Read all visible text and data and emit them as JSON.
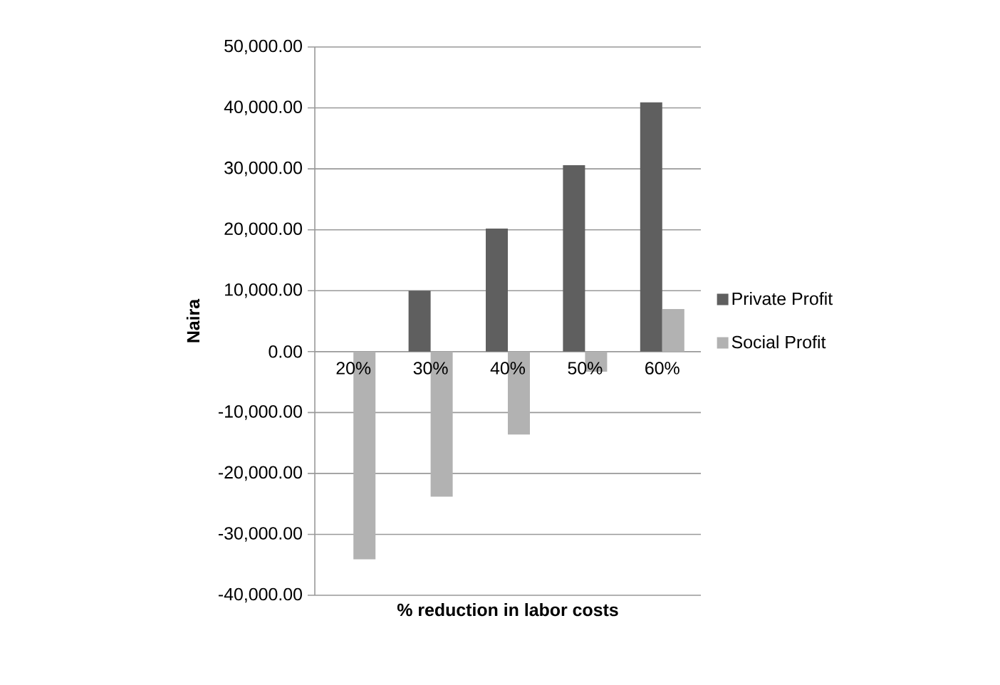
{
  "chart_data": {
    "type": "bar",
    "xlabel": "% reduction in labor costs",
    "ylabel": "Naira",
    "categories": [
      "20%",
      "30%",
      "40%",
      "50%",
      "60%"
    ],
    "series": [
      {
        "name": "Private Profit",
        "color": "#5f5f5f",
        "values": [
          0,
          10000,
          20200,
          30600,
          40900
        ]
      },
      {
        "name": "Social Profit",
        "color": "#b2b2b2",
        "values": [
          -34100,
          -23800,
          -13600,
          -3300,
          7000
        ]
      }
    ],
    "ylim": [
      -40000,
      50000
    ],
    "yticks": [
      {
        "value": -40000,
        "label": "-40,000.00"
      },
      {
        "value": -30000,
        "label": "-30,000.00"
      },
      {
        "value": -20000,
        "label": "-20,000.00"
      },
      {
        "value": -10000,
        "label": "-10,000.00"
      },
      {
        "value": 0,
        "label": "0.00"
      },
      {
        "value": 10000,
        "label": "10,000.00"
      },
      {
        "value": 20000,
        "label": "20,000.00"
      },
      {
        "value": 30000,
        "label": "30,000.00"
      },
      {
        "value": 40000,
        "label": "40,000.00"
      },
      {
        "value": 50000,
        "label": "50,000.00"
      }
    ],
    "grid": "y",
    "legend": "right"
  }
}
